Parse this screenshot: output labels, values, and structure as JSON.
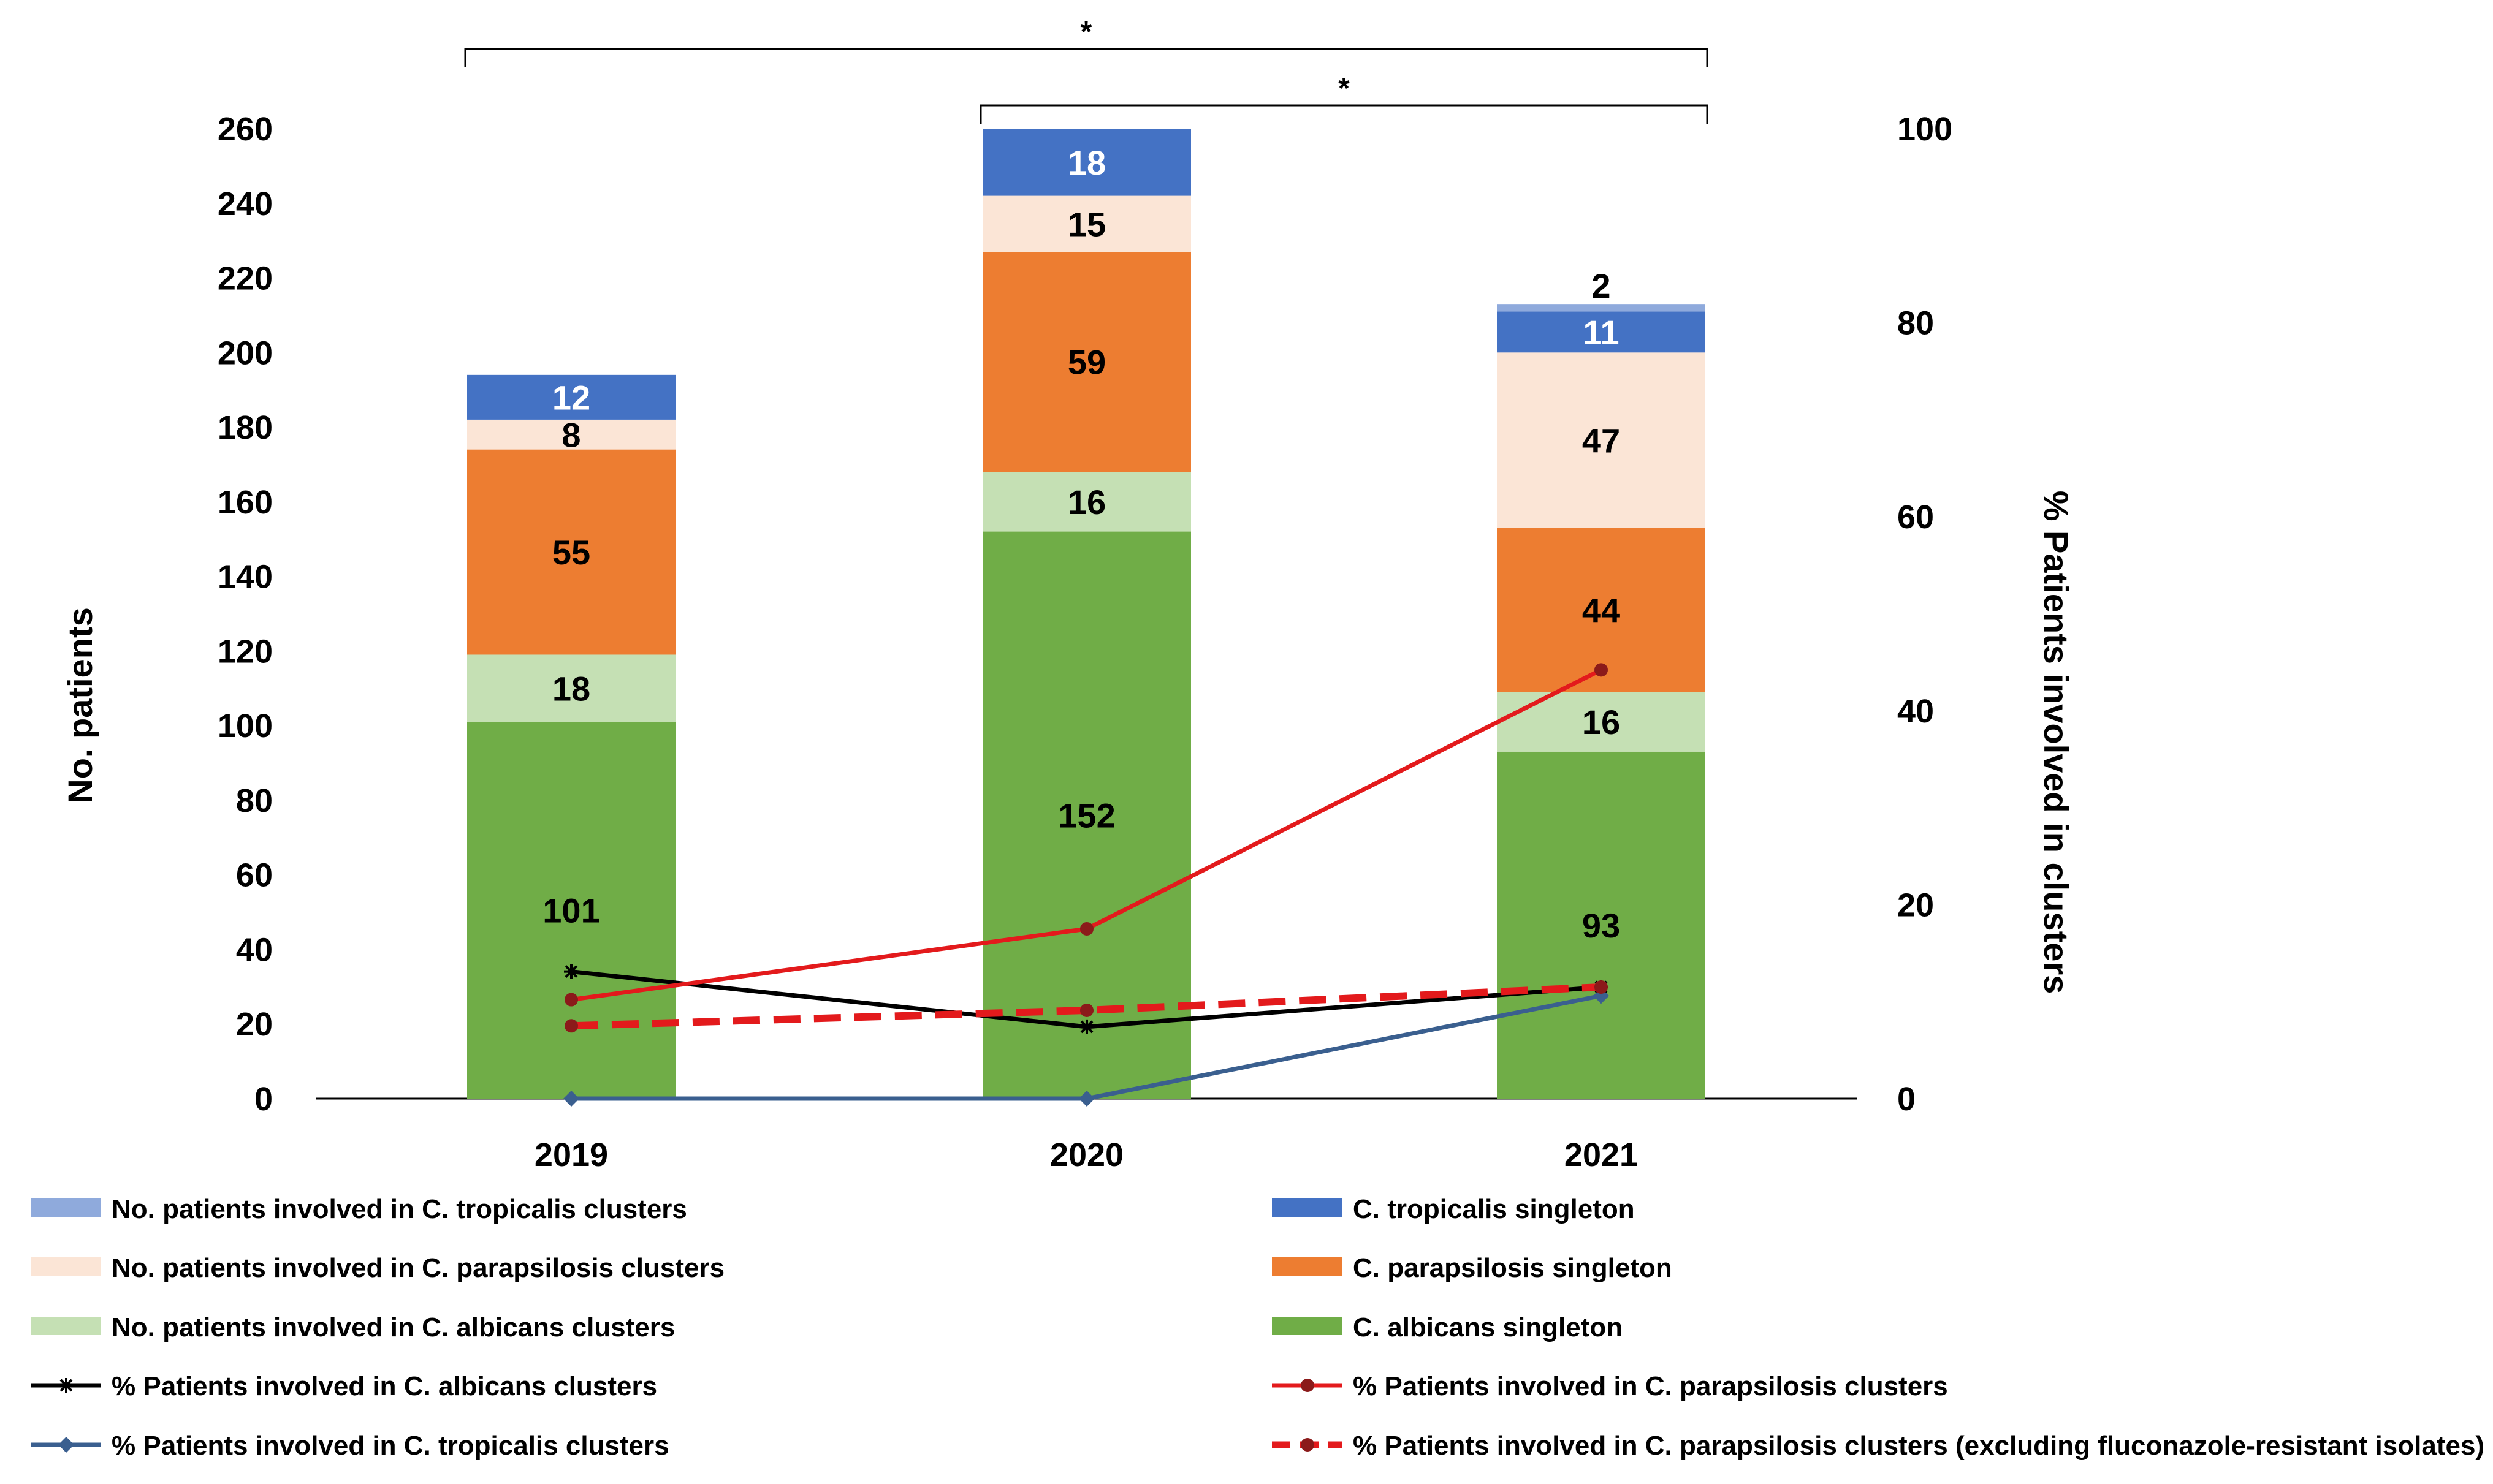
{
  "chart_data": {
    "type": "bar",
    "stacked": true,
    "categories": [
      "2019",
      "2020",
      "2021"
    ],
    "ylabel": "No. patients",
    "ylim": [
      0,
      260
    ],
    "yticks": [
      0,
      20,
      40,
      60,
      80,
      100,
      120,
      140,
      160,
      180,
      200,
      220,
      240,
      260
    ],
    "y2label": "% Patients involved in clusters",
    "y2lim": [
      0,
      100
    ],
    "y2ticks": [
      0,
      20,
      40,
      60,
      80,
      100
    ],
    "series": [
      {
        "name": "C. albicans singleton",
        "color": "#70ad47",
        "values": [
          101,
          152,
          93
        ],
        "label_color": "#000000"
      },
      {
        "name": "No. patients involved in C. albicans clusters",
        "color": "#c5e0b4",
        "values": [
          18,
          16,
          16
        ],
        "label_color": "#000000"
      },
      {
        "name": "C. parapsilosis singleton",
        "color": "#ed7d31",
        "values": [
          55,
          59,
          44
        ],
        "label_color": "#000000"
      },
      {
        "name": "No. patients involved in C. parapsilosis clusters",
        "color": "#fbe5d6",
        "values": [
          8,
          15,
          47
        ],
        "label_color": "#000000"
      },
      {
        "name": "C. tropicalis singleton",
        "color": "#4472c4",
        "values": [
          12,
          18,
          11
        ],
        "label_color": "#ffffff"
      },
      {
        "name": "No. patients involved in C. tropicalis clusters",
        "color": "#8faadc",
        "values": [
          0,
          0,
          2
        ],
        "label_color": "#000000"
      }
    ],
    "lines": [
      {
        "name": "% Patients involved in C. albicans clusters",
        "color": "#000000",
        "dashed": false,
        "marker": "star",
        "values": [
          13.1,
          7.4,
          11.5
        ]
      },
      {
        "name": "% Patients involved in C. parapsilosis clusters",
        "color": "#e31a1c",
        "dashed": false,
        "marker": "dot",
        "values": [
          10.2,
          17.5,
          44.2
        ]
      },
      {
        "name": "% Patients involved in C. parapsilosis clusters (excluding fluconazole-resistant isolates)",
        "color": "#e31a1c",
        "dashed": true,
        "marker": "dot",
        "values": [
          7.5,
          9.1,
          11.5
        ]
      },
      {
        "name": "% Patients involved in C. tropicalis clusters",
        "color": "#3a5f8f",
        "dashed": false,
        "marker": "diamond",
        "values": [
          0,
          0,
          10.6
        ]
      }
    ],
    "significance": [
      {
        "from": "2019",
        "to": "2021",
        "label": "*"
      },
      {
        "from": "2020",
        "to": "2021",
        "label": "*"
      }
    ],
    "legend": {
      "position": "bottom",
      "entries": [
        "No. patients involved in C. tropicalis clusters",
        "C. tropicalis singleton",
        "No. patients involved in C. parapsilosis clusters",
        "C. parapsilosis singleton",
        "No. patients involved in C. albicans clusters",
        "C. albicans singleton",
        "% Patients involved in C. albicans clusters",
        "% Patients involved in C. parapsilosis clusters",
        "% Patients involved in C. tropicalis clusters",
        "% Patients involved in C. parapsilosis clusters (excluding fluconazole-resistant isolates)"
      ]
    }
  }
}
